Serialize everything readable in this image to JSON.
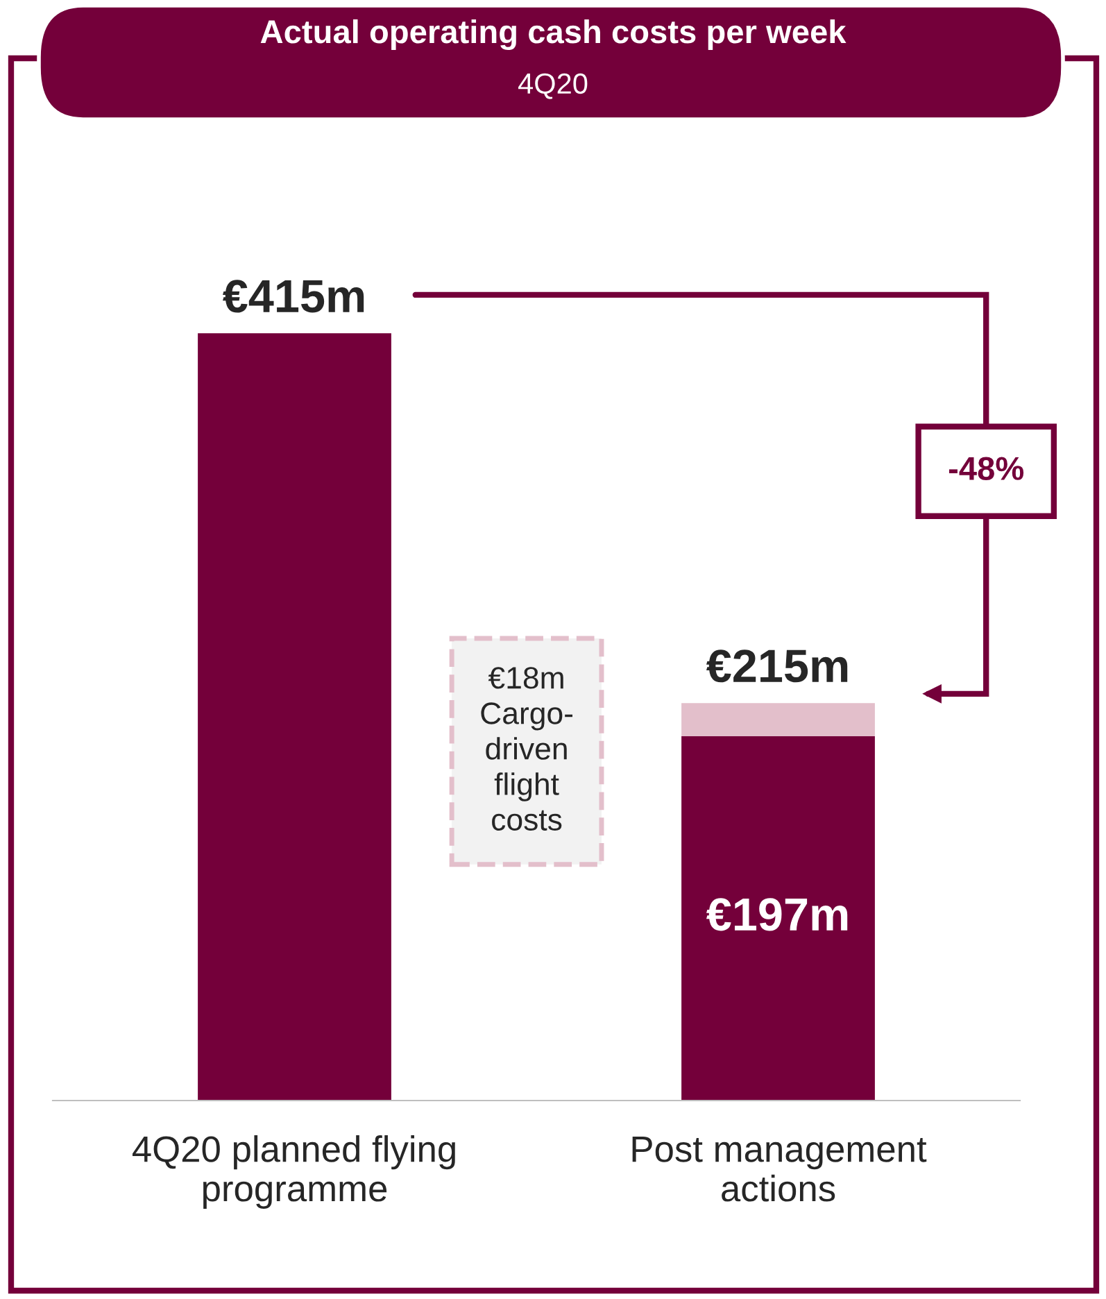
{
  "chart_data": {
    "type": "bar",
    "title": "Actual operating cash costs per week",
    "subtitle": "4Q20",
    "categories": [
      "4Q20 planned flying programme",
      "Post management actions"
    ],
    "stacked": true,
    "series": [
      {
        "color": "#74003a",
        "values": [
          415,
          197
        ],
        "value_labels": [
          null,
          "€197m"
        ]
      },
      {
        "color": "#e3bfcb",
        "values": [
          null,
          18
        ]
      }
    ],
    "totals": [
      "€415m",
      "€215m"
    ],
    "annotations": [
      "€18m\nCargo-\ndriven\nflight\ncosts",
      "-48%"
    ],
    "grid": false,
    "legend": false,
    "tick_labels": "x"
  }
}
